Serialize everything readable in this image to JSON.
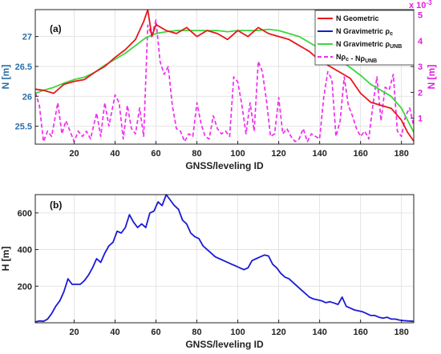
{
  "chart_data": [
    {
      "type": "line",
      "panel_label": "(a)",
      "xlabel": "GNSS/leveling ID",
      "ylabel": "N [m]",
      "ylabel_right": "N [m]",
      "right_axis_exponent": "x 10^-3",
      "xlim": [
        1,
        186
      ],
      "ylim": [
        25.2,
        27.45
      ],
      "ylim_right": [
        0,
        5.2
      ],
      "x_ticks": [
        20,
        40,
        60,
        80,
        100,
        120,
        140,
        160,
        180
      ],
      "y_ticks": [
        25.5,
        26,
        26.5,
        27
      ],
      "y_ticks_right": [
        1,
        2,
        3,
        4,
        5
      ],
      "grid": true,
      "legend_position": "top-right",
      "legend": [
        {
          "key": "geo",
          "text": "N Geometric"
        },
        {
          "key": "grav_pc",
          "text": "N Gravimetric ρ_c"
        },
        {
          "key": "grav_unb",
          "text": "N Gravimetric ρ_UNB"
        },
        {
          "key": "diff",
          "text": "Nρ_c - Nρ_UNB"
        }
      ],
      "colors": {
        "geo": "#e8161b",
        "grav_pc": "#1a1ad6",
        "grav_unb": "#3cd63c",
        "diff": "#f02cf0"
      },
      "series": [
        {
          "key": "geo",
          "axis": "left",
          "x": [
            1,
            5,
            10,
            15,
            20,
            25,
            30,
            35,
            40,
            45,
            50,
            54,
            56,
            58,
            60,
            65,
            70,
            75,
            80,
            85,
            90,
            95,
            100,
            105,
            110,
            115,
            120,
            125,
            130,
            135,
            140,
            145,
            150,
            155,
            160,
            165,
            170,
            175,
            180,
            183,
            186
          ],
          "y": [
            26.12,
            26.1,
            26.05,
            26.2,
            26.25,
            26.28,
            26.4,
            26.5,
            26.65,
            26.78,
            26.95,
            27.25,
            27.45,
            27.0,
            27.2,
            27.1,
            27.05,
            27.15,
            27.0,
            27.1,
            27.05,
            26.95,
            27.1,
            27.0,
            27.15,
            27.05,
            27.0,
            26.95,
            26.85,
            26.75,
            26.6,
            26.5,
            26.4,
            26.3,
            26.05,
            25.9,
            25.85,
            25.8,
            25.6,
            25.4,
            25.25
          ]
        },
        {
          "key": "grav_unb",
          "axis": "left",
          "x": [
            1,
            5,
            10,
            15,
            20,
            25,
            30,
            35,
            40,
            45,
            50,
            55,
            60,
            65,
            70,
            75,
            80,
            85,
            90,
            95,
            100,
            105,
            110,
            115,
            120,
            125,
            130,
            135,
            140,
            145,
            150,
            155,
            160,
            165,
            170,
            175,
            180,
            183,
            186
          ],
          "y": [
            26.05,
            26.1,
            26.15,
            26.22,
            26.28,
            26.32,
            26.4,
            26.52,
            26.62,
            26.72,
            26.85,
            26.98,
            27.05,
            27.08,
            27.1,
            27.1,
            27.1,
            27.1,
            27.1,
            27.08,
            27.1,
            27.1,
            27.1,
            27.12,
            27.1,
            27.05,
            27.0,
            26.9,
            26.8,
            26.68,
            26.6,
            26.48,
            26.35,
            26.2,
            26.1,
            26.0,
            25.8,
            25.6,
            25.4
          ]
        },
        {
          "key": "diff",
          "axis": "right",
          "x": [
            1,
            3,
            5,
            7,
            9,
            12,
            14,
            16,
            18,
            20,
            22,
            24,
            26,
            28,
            31,
            33,
            35,
            37,
            40,
            42,
            44,
            46,
            48,
            50,
            52,
            54,
            56,
            58,
            60,
            62,
            64,
            66,
            68,
            70,
            72,
            74,
            76,
            78,
            80,
            82,
            84,
            86,
            88,
            90,
            92,
            94,
            96,
            98,
            100,
            102,
            104,
            106,
            108,
            110,
            112,
            114,
            116,
            118,
            120,
            122,
            124,
            126,
            128,
            130,
            132,
            134,
            136,
            138,
            140,
            142,
            144,
            146,
            148,
            150,
            152,
            154,
            156,
            158,
            160,
            162,
            164,
            166,
            168,
            170,
            172,
            174,
            176,
            178,
            180,
            182,
            184,
            186
          ],
          "y": [
            2.0,
            1.5,
            0.1,
            0.5,
            0.3,
            1.6,
            0.4,
            0.9,
            0.5,
            0.1,
            0.5,
            0.3,
            0.5,
            0.2,
            1.2,
            0.3,
            1.6,
            0.7,
            1.9,
            1.6,
            0.2,
            1.5,
            0.6,
            0.4,
            1.4,
            0.3,
            4.6,
            4.2,
            4.8,
            3.2,
            2.7,
            3.0,
            1.5,
            0.6,
            0.5,
            0.1,
            0.4,
            0.3,
            1.6,
            0.8,
            0.3,
            0.2,
            1.1,
            0.6,
            0.4,
            0.5,
            0.3,
            2.6,
            2.4,
            1.5,
            0.4,
            1.6,
            0.5,
            3.2,
            2.8,
            1.7,
            0.3,
            0.4,
            1.8,
            0.4,
            0.6,
            0.3,
            0.1,
            0.2,
            0.6,
            0.1,
            0.4,
            0.3,
            0.2,
            1.8,
            2.8,
            2.5,
            0.3,
            0.9,
            2.6,
            1.5,
            1.1,
            0.6,
            0.3,
            0.5,
            0.2,
            1.5,
            2.6,
            0.9,
            2.2,
            2.1,
            2.7,
            0.5,
            0.3,
            1.1,
            1.4,
            0.7
          ]
        }
      ]
    },
    {
      "type": "line",
      "panel_label": "(b)",
      "xlabel": "GNSS/leveling ID",
      "ylabel": "H [m]",
      "xlim": [
        1,
        186
      ],
      "ylim": [
        0,
        700
      ],
      "x_ticks": [
        20,
        40,
        60,
        80,
        100,
        120,
        140,
        160,
        180
      ],
      "y_ticks": [
        200,
        400,
        600
      ],
      "grid": true,
      "colors": {
        "height": "#1a1ad6"
      },
      "series": [
        {
          "key": "height",
          "x": [
            1,
            3,
            5,
            7,
            9,
            11,
            13,
            15,
            17,
            19,
            21,
            23,
            25,
            27,
            29,
            31,
            33,
            35,
            37,
            39,
            41,
            43,
            45,
            47,
            49,
            51,
            53,
            55,
            57,
            59,
            61,
            63,
            65,
            67,
            69,
            71,
            73,
            75,
            77,
            79,
            81,
            83,
            85,
            87,
            89,
            91,
            93,
            95,
            97,
            99,
            101,
            103,
            105,
            107,
            109,
            111,
            113,
            115,
            117,
            119,
            121,
            123,
            125,
            127,
            129,
            131,
            133,
            135,
            137,
            139,
            141,
            143,
            145,
            147,
            149,
            151,
            153,
            155,
            157,
            159,
            161,
            163,
            165,
            167,
            169,
            171,
            173,
            175,
            177,
            179,
            181,
            183,
            186
          ],
          "y": [
            5,
            10,
            8,
            20,
            50,
            90,
            120,
            170,
            240,
            210,
            210,
            210,
            230,
            260,
            300,
            350,
            330,
            380,
            420,
            440,
            500,
            490,
            520,
            590,
            550,
            520,
            540,
            520,
            600,
            610,
            660,
            640,
            700,
            670,
            640,
            620,
            560,
            540,
            490,
            470,
            460,
            420,
            400,
            380,
            360,
            350,
            340,
            330,
            320,
            310,
            300,
            290,
            300,
            340,
            350,
            360,
            370,
            365,
            320,
            300,
            270,
            250,
            240,
            220,
            200,
            180,
            160,
            140,
            130,
            125,
            120,
            110,
            115,
            108,
            100,
            140,
            90,
            80,
            70,
            65,
            60,
            50,
            40,
            40,
            30,
            25,
            30,
            20,
            20,
            15,
            12,
            10,
            8
          ]
        }
      ]
    }
  ]
}
